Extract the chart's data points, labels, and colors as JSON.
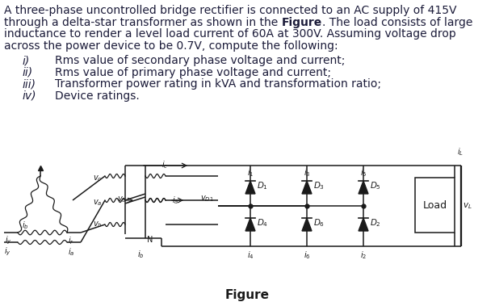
{
  "bg_color": "#ffffff",
  "text_color": "#1a1a2e",
  "font_color": "#1c1c3a",
  "body_fs": 10.0,
  "list_fs": 10.0,
  "fig_label_fs": 11.0,
  "circuit_lw": 1.1,
  "diode_lw": 0.9,
  "body_lines": [
    [
      "A three-phase uncontrolled bridge rectifier is connected to an AC supply of 415V",
      false
    ],
    [
      "through a delta-star transformer as shown in the ",
      false,
      "Figure",
      true,
      ". The load consists of large",
      false
    ],
    [
      "inductance to render a level load current of 60A at 300V. Assuming voltage drop",
      false
    ],
    [
      "across the power device to be 0.7V, compute the following:",
      false
    ]
  ],
  "list_items": [
    [
      "i)",
      "Rms value of secondary phase voltage and current;"
    ],
    [
      "ii)",
      "Rms value of primary phase voltage and current;"
    ],
    [
      "iii)",
      "Transformer power rating in kVA and transformation ratio;"
    ],
    [
      "iv)",
      "Device ratings."
    ]
  ],
  "figure_label": "Figure"
}
